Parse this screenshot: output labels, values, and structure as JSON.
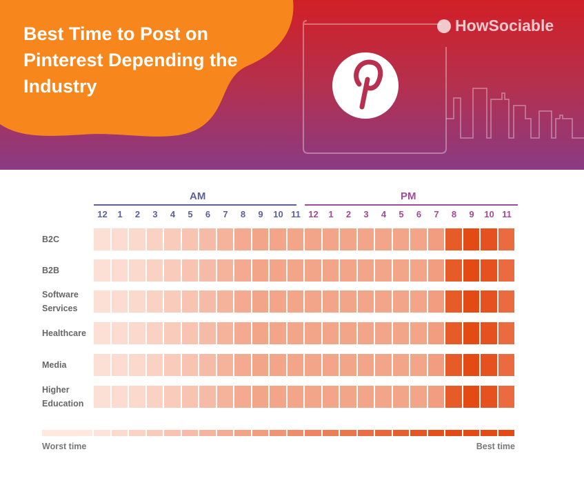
{
  "header": {
    "title": "Best Time to Post on Pinterest Depending the Industry",
    "brand": "HowSociable",
    "icons": [
      "pinterest-logo-icon",
      "howsociable-logo-icon",
      "city-skyline-icon"
    ]
  },
  "colors": {
    "accent_orange": "#f7861c",
    "am": "#5b5f9e",
    "pm": "#a24a94",
    "worst": "#fde8e0",
    "best": "#d2400c"
  },
  "chart_data": {
    "type": "heatmap",
    "title": "Best Time to Post on Pinterest Depending the Industry",
    "groups": [
      {
        "label": "AM",
        "hours": [
          "12",
          "1",
          "2",
          "3",
          "4",
          "5",
          "6",
          "7",
          "8",
          "9",
          "10",
          "11"
        ]
      },
      {
        "label": "PM",
        "hours": [
          "12",
          "1",
          "2",
          "3",
          "4",
          "5",
          "6",
          "7",
          "8",
          "9",
          "10",
          "11"
        ]
      }
    ],
    "rows": [
      {
        "label": "B2C",
        "values": [
          0.1,
          0.12,
          0.14,
          0.18,
          0.22,
          0.27,
          0.32,
          0.37,
          0.42,
          0.45,
          0.45,
          0.45,
          0.45,
          0.45,
          0.45,
          0.45,
          0.45,
          0.45,
          0.45,
          0.5,
          0.9,
          1.0,
          0.95,
          0.8
        ]
      },
      {
        "label": "B2B",
        "values": [
          0.1,
          0.12,
          0.14,
          0.18,
          0.22,
          0.27,
          0.32,
          0.37,
          0.42,
          0.45,
          0.45,
          0.45,
          0.45,
          0.45,
          0.45,
          0.45,
          0.45,
          0.45,
          0.45,
          0.5,
          0.9,
          1.0,
          0.95,
          0.8
        ]
      },
      {
        "label": "Software Services",
        "values": [
          0.1,
          0.12,
          0.14,
          0.18,
          0.22,
          0.27,
          0.32,
          0.37,
          0.42,
          0.45,
          0.45,
          0.45,
          0.45,
          0.45,
          0.45,
          0.45,
          0.45,
          0.45,
          0.45,
          0.5,
          0.9,
          1.0,
          0.95,
          0.8
        ]
      },
      {
        "label": "Healthcare",
        "values": [
          0.1,
          0.12,
          0.14,
          0.18,
          0.22,
          0.27,
          0.32,
          0.37,
          0.42,
          0.45,
          0.45,
          0.45,
          0.45,
          0.45,
          0.45,
          0.45,
          0.45,
          0.45,
          0.45,
          0.5,
          0.9,
          1.0,
          0.95,
          0.8
        ]
      },
      {
        "label": "Media",
        "values": [
          0.1,
          0.12,
          0.14,
          0.18,
          0.22,
          0.27,
          0.32,
          0.37,
          0.42,
          0.45,
          0.45,
          0.45,
          0.45,
          0.45,
          0.45,
          0.45,
          0.45,
          0.45,
          0.45,
          0.5,
          0.9,
          1.0,
          0.95,
          0.8
        ]
      },
      {
        "label": "Higher Education",
        "values": [
          0.1,
          0.12,
          0.14,
          0.18,
          0.22,
          0.27,
          0.32,
          0.37,
          0.42,
          0.45,
          0.45,
          0.45,
          0.45,
          0.45,
          0.45,
          0.45,
          0.45,
          0.45,
          0.45,
          0.5,
          0.9,
          1.0,
          0.95,
          0.8
        ]
      }
    ],
    "legend": {
      "low": "Worst time",
      "high": "Best time",
      "placement": "bottom"
    }
  }
}
